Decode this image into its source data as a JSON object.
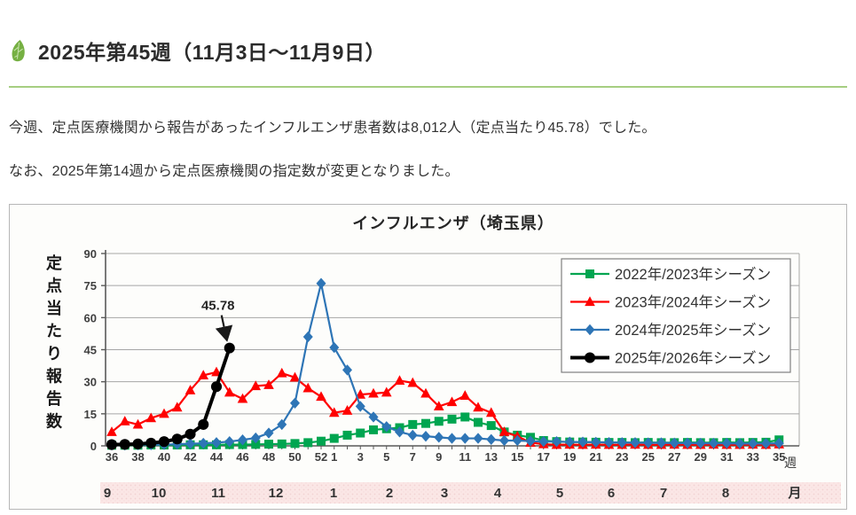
{
  "header": {
    "title": "2025年第45週（11月3日～11月9日）"
  },
  "paragraphs": {
    "p1": "今週、定点医療機関から報告があったインフルエンザ患者数は8,012人（定点当たり45.78）でした。",
    "p2": "なお、2025年第14週から定点医療機関の指定数が変更となりました。"
  },
  "colors": {
    "divider_green": "#a6ce81",
    "leaf_green": "#76b043",
    "month_band_pink": "#fbe7e6",
    "axis_gray": "#595959",
    "grid_gray": "#a6a6a6"
  },
  "chart_data": {
    "type": "line",
    "title": "インフルエンザ（埼玉県）",
    "ylabel": "定点当たり報告数",
    "week_axis_unit": "週",
    "month_axis_unit": "月",
    "ylim": [
      0,
      90
    ],
    "yticks": [
      0,
      15,
      30,
      45,
      60,
      75,
      90
    ],
    "grid": true,
    "legend_position": "top-right",
    "categories": [
      "36",
      "37",
      "38",
      "39",
      "40",
      "41",
      "42",
      "43",
      "44",
      "45",
      "46",
      "47",
      "48",
      "49",
      "50",
      "51",
      "52",
      "1",
      "2",
      "3",
      "4",
      "5",
      "6",
      "7",
      "8",
      "9",
      "10",
      "11",
      "12",
      "13",
      "14",
      "15",
      "16",
      "17",
      "18",
      "19",
      "20",
      "21",
      "22",
      "23",
      "24",
      "25",
      "26",
      "27",
      "28",
      "29",
      "30",
      "31",
      "32",
      "33",
      "34",
      "35"
    ],
    "months": [
      "9",
      "10",
      "11",
      "12",
      "1",
      "2",
      "3",
      "4",
      "5",
      "6",
      "7",
      "8"
    ],
    "annotation": {
      "text": "45.78",
      "week_index": 9
    },
    "series": [
      {
        "name": "2022年/2023年シーズン",
        "color": "#00a550",
        "marker": "square",
        "values": [
          0.3,
          0.3,
          0.3,
          0.4,
          0.4,
          0.4,
          0.5,
          0.5,
          0.5,
          0.6,
          0.6,
          0.7,
          0.8,
          0.9,
          1.1,
          1.5,
          2.2,
          3.5,
          5,
          6,
          7.5,
          8,
          8.5,
          10,
          10.5,
          11.5,
          12.5,
          13.5,
          11,
          9.5,
          6.5,
          5,
          4,
          2.5,
          2,
          1.8,
          1.8,
          1.7,
          1.6,
          1.6,
          1.5,
          1.6,
          1.5,
          1.5,
          1.6,
          1.5,
          1.5,
          1.6,
          1.5,
          1.6,
          1.7,
          2.8
        ]
      },
      {
        "name": "2023年/2024年シーズン",
        "color": "#ff0000",
        "marker": "triangle",
        "values": [
          6.5,
          11.5,
          10,
          13,
          15,
          18,
          26,
          33,
          34.5,
          25,
          22,
          28,
          28.5,
          34,
          32,
          27,
          23,
          15.5,
          16.5,
          24,
          24.5,
          25,
          30.5,
          29.5,
          24.5,
          18.5,
          20.5,
          23.5,
          18,
          15.5,
          6.5,
          4.5,
          1.5,
          0.8,
          0.5,
          0.6,
          0.5,
          0.6,
          0.5,
          0.5,
          0.6,
          0.5,
          0.5,
          0.6,
          0.5,
          0.5,
          0.6,
          0.5,
          0.5,
          0.6,
          0.5,
          0.7
        ]
      },
      {
        "name": "2024年/2025年シーズン",
        "color": "#2e75b6",
        "marker": "diamond",
        "values": [
          0.4,
          0.4,
          0.5,
          0.5,
          0.6,
          0.8,
          1,
          1.2,
          1.5,
          2,
          2.8,
          3.7,
          6,
          10,
          20,
          51,
          76,
          46,
          35.5,
          18.5,
          13.5,
          9,
          6.5,
          5,
          4.5,
          4,
          3.5,
          3.5,
          3.5,
          3,
          2.5,
          2.5,
          2.2,
          2,
          2,
          1.8,
          1.8,
          1.7,
          1.6,
          1.5,
          1.5,
          1.4,
          1.4,
          1.3,
          1.3,
          1.2,
          1.2,
          1.2,
          1.1,
          1.1,
          1.1,
          1.2
        ]
      },
      {
        "name": "2025年/2026年シーズン",
        "color": "#000000",
        "marker": "circle",
        "values": [
          0.6,
          0.7,
          0.9,
          1.3,
          2,
          3.2,
          5.5,
          10,
          27.7,
          45.78
        ]
      }
    ]
  }
}
